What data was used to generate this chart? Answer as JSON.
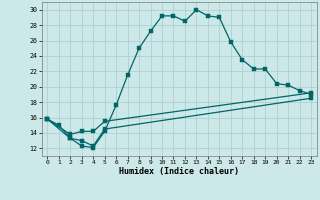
{
  "xlabel": "Humidex (Indice chaleur)",
  "bg_color": "#cce8e8",
  "grid_color": "#aacccc",
  "line_color": "#006666",
  "xlim": [
    -0.5,
    23.5
  ],
  "ylim": [
    11.0,
    31.0
  ],
  "yticks": [
    12,
    14,
    16,
    18,
    20,
    22,
    24,
    26,
    28,
    30
  ],
  "xticks": [
    0,
    1,
    2,
    3,
    4,
    5,
    6,
    7,
    8,
    9,
    10,
    11,
    12,
    13,
    14,
    15,
    16,
    17,
    18,
    19,
    20,
    21,
    22,
    23
  ],
  "curve1_x": [
    0,
    1,
    2,
    3,
    4,
    5,
    6,
    7,
    8,
    9,
    10,
    11,
    12,
    13,
    14,
    15,
    16,
    17,
    18,
    19,
    20,
    21,
    22,
    23
  ],
  "curve1_y": [
    15.8,
    15.0,
    13.3,
    12.3,
    12.1,
    14.2,
    17.6,
    21.5,
    25.0,
    27.2,
    29.2,
    29.2,
    28.5,
    30.0,
    29.2,
    29.0,
    25.8,
    23.5,
    22.3,
    22.3,
    20.4,
    20.2,
    19.5,
    19.0
  ],
  "curve2_x": [
    0,
    2,
    3,
    4,
    5,
    23
  ],
  "curve2_y": [
    15.8,
    13.8,
    14.2,
    14.2,
    15.5,
    19.2
  ],
  "curve3_x": [
    0,
    2,
    3,
    4,
    5,
    23
  ],
  "curve3_y": [
    15.8,
    13.3,
    13.0,
    12.3,
    14.5,
    18.5
  ]
}
